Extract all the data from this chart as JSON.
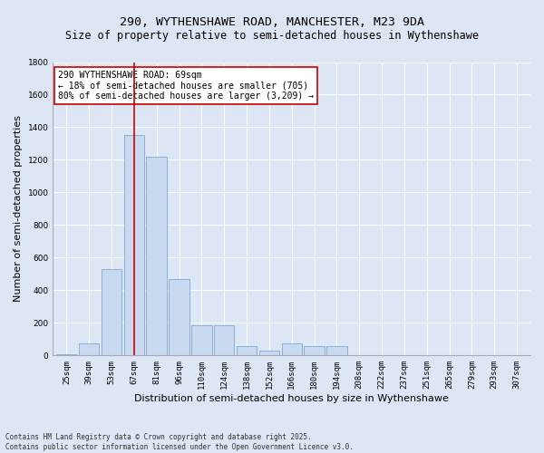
{
  "title1": "290, WYTHENSHAWE ROAD, MANCHESTER, M23 9DA",
  "title2": "Size of property relative to semi-detached houses in Wythenshawe",
  "xlabel": "Distribution of semi-detached houses by size in Wythenshawe",
  "ylabel": "Number of semi-detached properties",
  "categories": [
    "25sqm",
    "39sqm",
    "53sqm",
    "67sqm",
    "81sqm",
    "96sqm",
    "110sqm",
    "124sqm",
    "138sqm",
    "152sqm",
    "166sqm",
    "180sqm",
    "194sqm",
    "208sqm",
    "222sqm",
    "237sqm",
    "251sqm",
    "265sqm",
    "279sqm",
    "293sqm",
    "307sqm"
  ],
  "values": [
    10,
    75,
    530,
    1350,
    1220,
    470,
    185,
    185,
    60,
    30,
    75,
    55,
    55,
    0,
    0,
    0,
    0,
    0,
    0,
    0,
    0
  ],
  "bar_color": "#c9d9f0",
  "bar_edge_color": "#7fa8d4",
  "vline_x_index": 3,
  "vline_color": "#cc0000",
  "annotation_text": "290 WYTHENSHAWE ROAD: 69sqm\n← 18% of semi-detached houses are smaller (705)\n80% of semi-detached houses are larger (3,209) →",
  "annotation_box_color": "#ffffff",
  "annotation_box_edge": "#cc0000",
  "ylim": [
    0,
    1800
  ],
  "yticks": [
    0,
    200,
    400,
    600,
    800,
    1000,
    1200,
    1400,
    1600,
    1800
  ],
  "bg_color": "#dce6f5",
  "fig_bg_color": "#dce6f5",
  "footer": "Contains HM Land Registry data © Crown copyright and database right 2025.\nContains public sector information licensed under the Open Government Licence v3.0.",
  "title_fontsize": 9.5,
  "subtitle_fontsize": 8.5,
  "tick_fontsize": 6.5,
  "label_fontsize": 8,
  "annot_fontsize": 7,
  "footer_fontsize": 5.5
}
